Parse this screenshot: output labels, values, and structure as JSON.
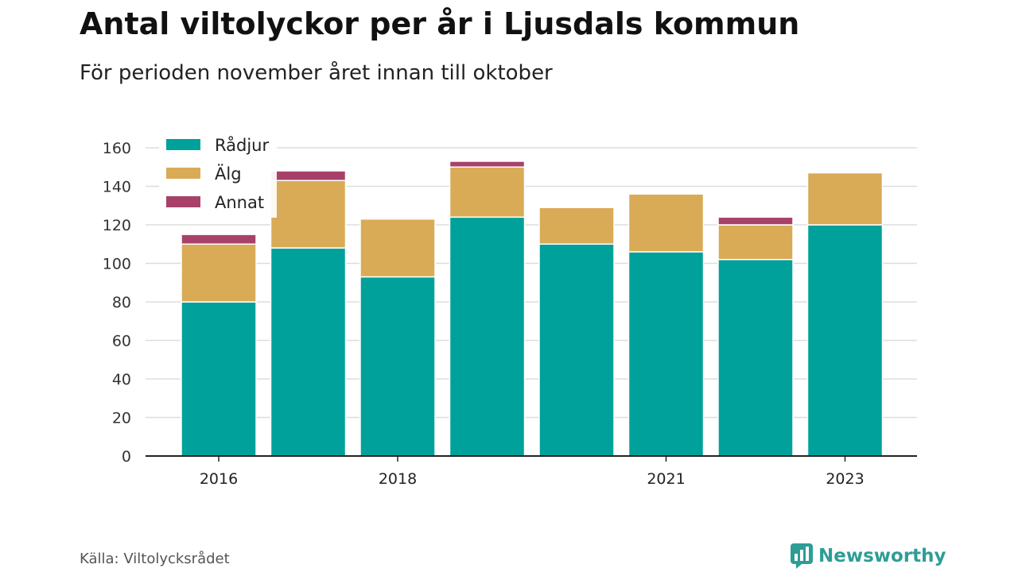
{
  "title": "Antal viltolyckor per år i Ljusdals kommun",
  "subtitle": "För perioden november året innan till oktober",
  "source": "Källa: Viltolycksrådet",
  "brand": {
    "name": "Newsworthy",
    "icon": "newsworthy-logo-icon",
    "color": "#2e9d96"
  },
  "chart_data": {
    "type": "bar",
    "stacked": true,
    "categories": [
      "2016",
      "2017",
      "2018",
      "2019",
      "2020",
      "2021",
      "2022",
      "2023"
    ],
    "x_tick_labels": [
      "2016",
      "",
      "2018",
      "",
      "",
      "2021",
      "",
      "2023"
    ],
    "series": [
      {
        "name": "Rådjur",
        "color": "#00a19a",
        "values": [
          80,
          108,
          93,
          124,
          110,
          106,
          102,
          120
        ]
      },
      {
        "name": "Älg",
        "color": "#d9ab57",
        "values": [
          30,
          35,
          30,
          26,
          19,
          30,
          18,
          27
        ]
      },
      {
        "name": "Annat",
        "color": "#a8416a",
        "values": [
          5,
          5,
          0,
          3,
          0,
          0,
          4,
          0
        ]
      }
    ],
    "ylim": [
      0,
      160
    ],
    "yticks": [
      0,
      20,
      40,
      60,
      80,
      100,
      120,
      140,
      160
    ],
    "grid": true,
    "legend": "top-left"
  }
}
